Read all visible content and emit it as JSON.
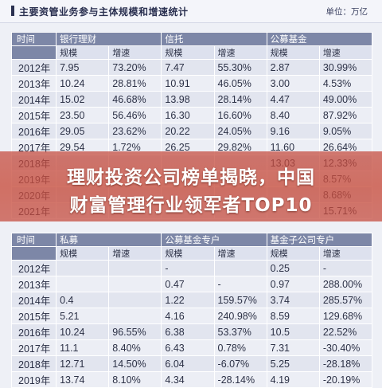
{
  "header": {
    "title": "主要资管业务参与主体规模和增速统计",
    "unit": "单位：万亿"
  },
  "table1": {
    "year_header": "时间",
    "groups": [
      "银行理财",
      "信托",
      "公募基金"
    ],
    "sub": [
      "规模",
      "增速"
    ],
    "rows": [
      {
        "year": "2012年",
        "v": [
          "7.95",
          "73.20%",
          "7.47",
          "55.30%",
          "2.87",
          "30.99%"
        ]
      },
      {
        "year": "2013年",
        "v": [
          "10.24",
          "28.81%",
          "10.91",
          "46.05%",
          "3.00",
          "4.53%"
        ]
      },
      {
        "year": "2014年",
        "v": [
          "15.02",
          "46.68%",
          "13.98",
          "28.14%",
          "4.47",
          "49.00%"
        ]
      },
      {
        "year": "2015年",
        "v": [
          "23.50",
          "56.46%",
          "16.30",
          "16.60%",
          "8.40",
          "87.92%"
        ]
      },
      {
        "year": "2016年",
        "v": [
          "29.05",
          "23.62%",
          "20.22",
          "24.05%",
          "9.16",
          "9.05%"
        ]
      },
      {
        "year": "2017年",
        "v": [
          "29.54",
          "1.72%",
          "26.25",
          "29.82%",
          "11.60",
          "26.64%"
        ]
      },
      {
        "year": "2018年",
        "v": [
          "",
          "",
          "",
          "",
          "13.03",
          "12.33%"
        ]
      },
      {
        "year": "2019年",
        "v": [
          "",
          "",
          "",
          "",
          "",
          "8.57%"
        ]
      },
      {
        "year": "2020年",
        "v": [
          "",
          "",
          "",
          "",
          "",
          "8.68%"
        ]
      },
      {
        "year": "2021年",
        "v": [
          "",
          "",
          "",
          "",
          "",
          "15.71%"
        ]
      }
    ]
  },
  "banner": {
    "line1": "理财投资公司榜单揭晓，中国",
    "line2": "财富管理行业领军者TOP10"
  },
  "table2": {
    "year_header": "时间",
    "groups": [
      "私募",
      "公募基金专户",
      "基金子公司专户"
    ],
    "sub": [
      "规模",
      "增速"
    ],
    "rows": [
      {
        "year": "2012年",
        "v": [
          "",
          "",
          "-",
          "",
          "0.25",
          "-"
        ]
      },
      {
        "year": "2013年",
        "v": [
          "",
          "",
          "0.47",
          "-",
          "0.97",
          "288.00%"
        ]
      },
      {
        "year": "2014年",
        "v": [
          "0.4",
          "",
          "1.22",
          "159.57%",
          "3.74",
          "285.57%"
        ]
      },
      {
        "year": "2015年",
        "v": [
          "5.21",
          "",
          "4.16",
          "240.98%",
          "8.59",
          "129.68%"
        ]
      },
      {
        "year": "2016年",
        "v": [
          "10.24",
          "96.55%",
          "6.38",
          "53.37%",
          "10.5",
          "22.52%"
        ]
      },
      {
        "year": "2017年",
        "v": [
          "11.1",
          "8.40%",
          "6.43",
          "0.78%",
          "7.31",
          "-30.40%"
        ]
      },
      {
        "year": "2018年",
        "v": [
          "12.71",
          "14.50%",
          "6.04",
          "-6.07%",
          "5.25",
          "-28.18%"
        ]
      },
      {
        "year": "2019年",
        "v": [
          "13.74",
          "8.10%",
          "4.34",
          "-28.14%",
          "4.19",
          "-20.19%"
        ]
      }
    ]
  }
}
